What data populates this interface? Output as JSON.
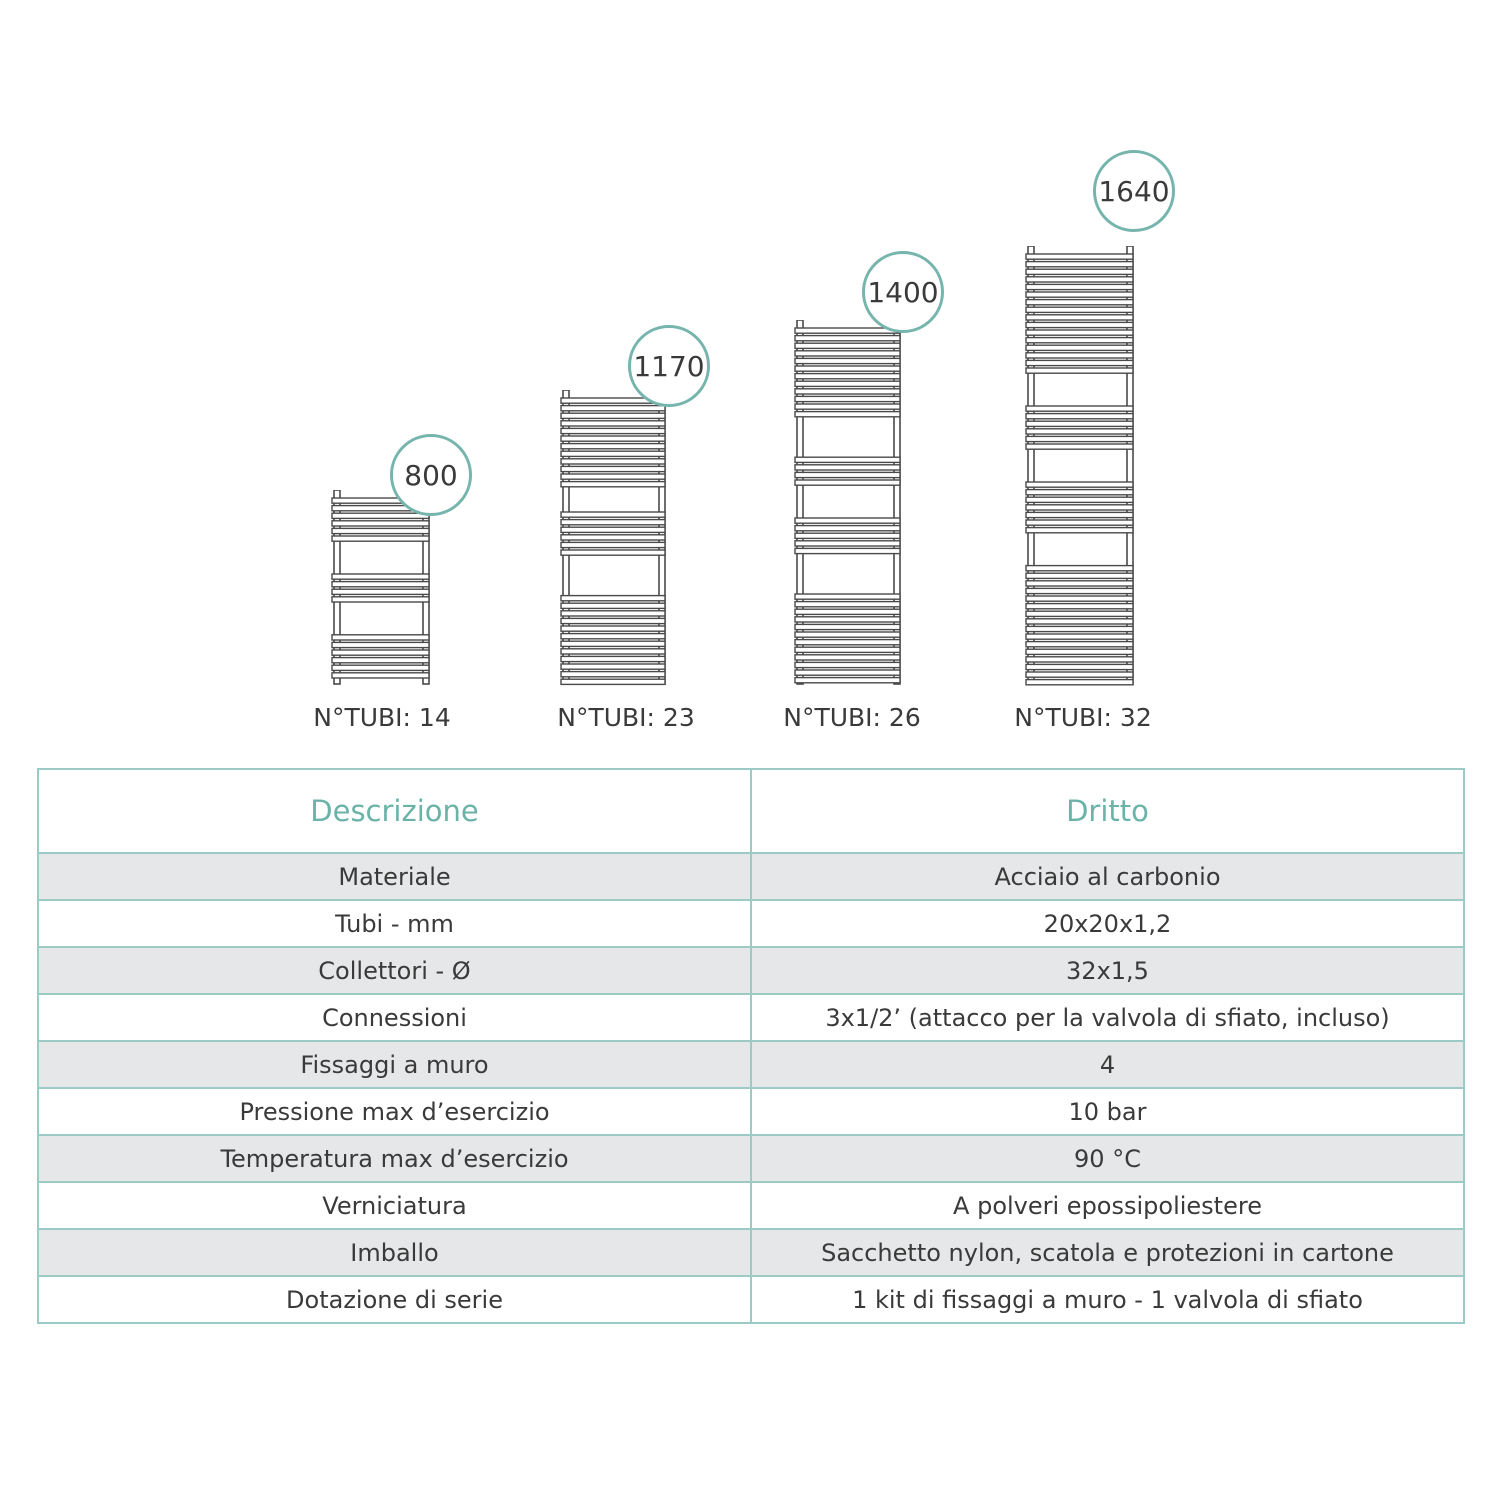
{
  "models": [
    {
      "height": "800",
      "tubes_label": "N°TUBI: 14"
    },
    {
      "height": "1170",
      "tubes_label": "N°TUBI: 23"
    },
    {
      "height": "1400",
      "tubes_label": "N°TUBI: 26"
    },
    {
      "height": "1640",
      "tubes_label": "N°TUBI: 32"
    }
  ],
  "table": {
    "headers": [
      "Descrizione",
      "Dritto"
    ],
    "rows": [
      [
        "Materiale",
        "Acciaio al carbonio"
      ],
      [
        "Tubi - mm",
        "20x20x1,2"
      ],
      [
        "Collettori - Ø",
        "32x1,5"
      ],
      [
        "Connessioni",
        "3x1/2’ (attacco per la valvola di sfiato, incluso)"
      ],
      [
        "Fissaggi a muro",
        "4"
      ],
      [
        "Pressione max d’esercizio",
        "10 bar"
      ],
      [
        "Temperatura max d’esercizio",
        "90 °C"
      ],
      [
        "Verniciatura",
        "A polveri epossipoliestere"
      ],
      [
        "Imballo",
        "Sacchetto nylon, scatola e protezioni in cartone"
      ],
      [
        "Dotazione di serie",
        "1 kit di fissaggi a muro - 1 valvola di sfiato"
      ]
    ]
  },
  "colors": {
    "accent": "#76b5ad",
    "row_alt": "#e6e7e8"
  }
}
